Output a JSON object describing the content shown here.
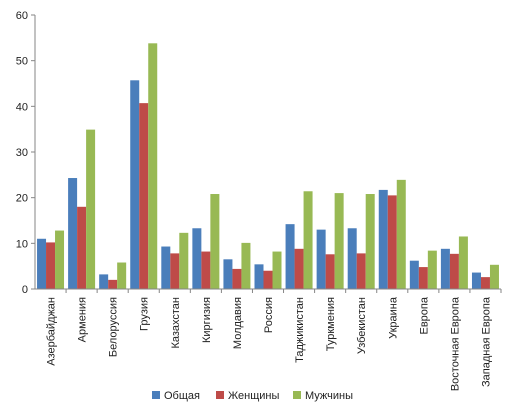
{
  "chart_data": {
    "type": "bar",
    "categories": [
      "Азербайджан",
      "Армения",
      "Белоруссия",
      "Грузия",
      "Казахстан",
      "Киргизия",
      "Молдавия",
      "Россия",
      "Таджикистан",
      "Туркмения",
      "Узбекистан",
      "Украина",
      "Европа",
      "Восточная Европа",
      "Западная Европа"
    ],
    "series": [
      {
        "name": "Общая",
        "color": "#4a7ebb",
        "values": [
          11.0,
          24.3,
          3.2,
          45.7,
          9.3,
          13.3,
          6.5,
          5.4,
          14.2,
          13.0,
          13.3,
          21.7,
          6.2,
          8.8,
          3.6
        ]
      },
      {
        "name": "Женщины",
        "color": "#be4b48",
        "values": [
          10.2,
          18.0,
          2.0,
          40.7,
          7.8,
          8.2,
          4.4,
          4.0,
          8.8,
          7.6,
          7.8,
          20.5,
          4.8,
          7.7,
          2.6
        ]
      },
      {
        "name": "Мужчины",
        "color": "#98b954",
        "values": [
          12.8,
          34.9,
          5.8,
          53.8,
          12.3,
          20.8,
          10.1,
          8.2,
          21.4,
          21.0,
          20.8,
          23.9,
          8.4,
          11.5,
          5.3
        ]
      }
    ],
    "yticks": [
      "0",
      "10",
      "20",
      "30",
      "40",
      "50",
      "60"
    ],
    "ylim": [
      0,
      60
    ],
    "grid": false,
    "legend_position": "bottom"
  }
}
